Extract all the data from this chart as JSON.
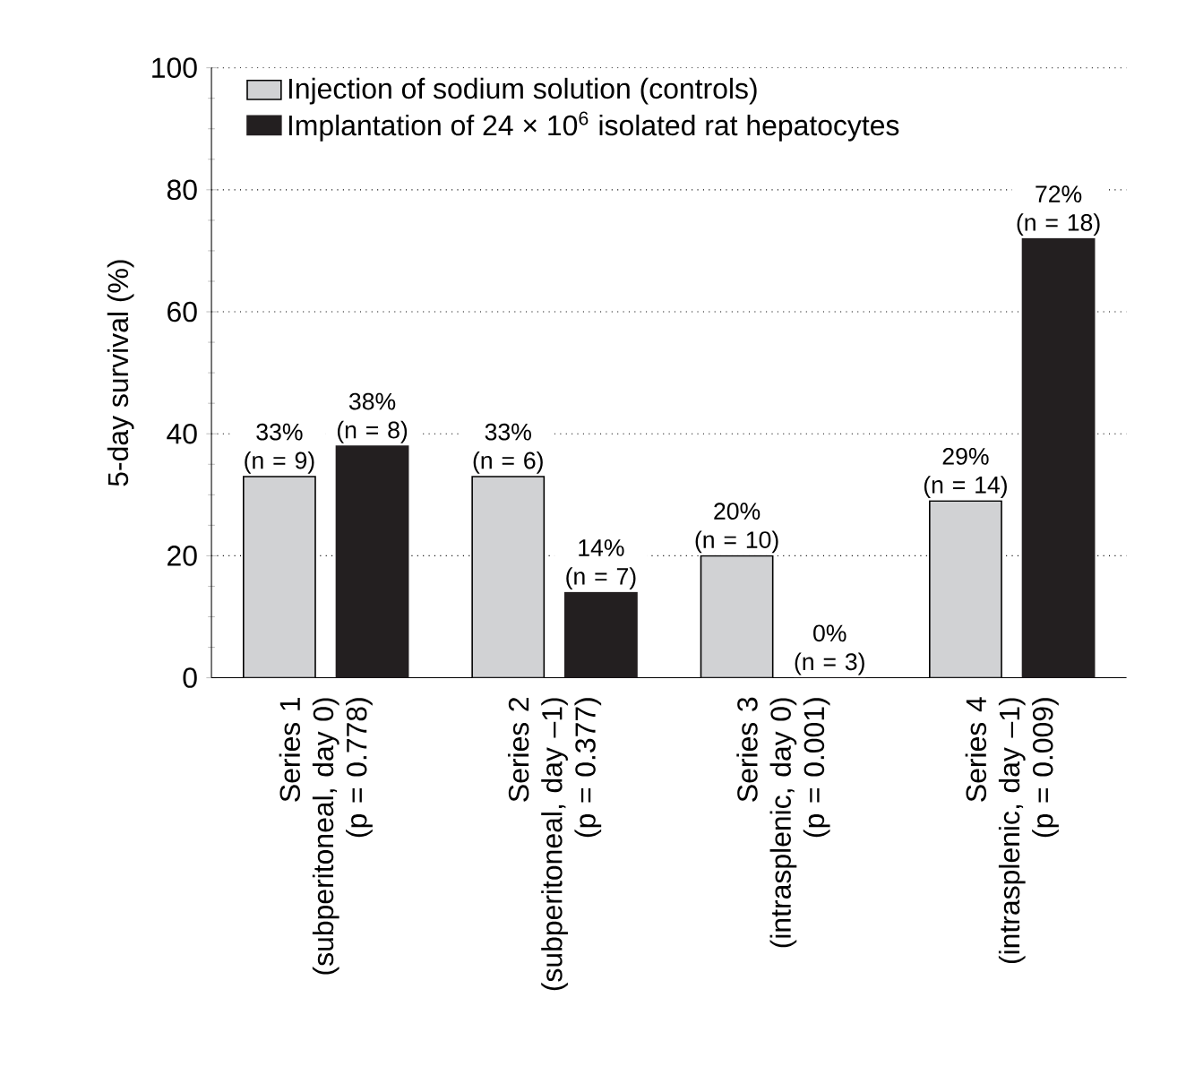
{
  "chart_data": {
    "type": "bar",
    "ylabel": "5-day survival (%)",
    "categories": [
      "Series 1\n(subperitoneal, day 0)\n(p = 0.778)",
      "Series 2\n(subperitoneal, day –1)\n(p = 0.377)",
      "Series 3\n(intrasplenic, day 0)\n(p = 0.001)",
      "Series 4\n(intrasplenic, day –1)\n(p = 0.009)"
    ],
    "series": [
      {
        "name": "Injection of sodium solution (controls)",
        "color": "#d1d2d4",
        "values": [
          33,
          33,
          20,
          29
        ],
        "value_labels": [
          "33%\n(n = 9)",
          "33%\n(n = 6)",
          "20%\n(n = 10)",
          "29%\n(n = 14)"
        ]
      },
      {
        "name": "Implantation of 24 × 10$^{6}$ isolated rat hepatocytes",
        "color": "#231f20",
        "values": [
          38,
          14,
          0,
          72
        ],
        "value_labels": [
          "38%\n(n = 8)",
          "14%\n(n = 7)",
          "0%\n(n = 3)",
          "72%\n(n = 18)"
        ]
      }
    ],
    "ylim": [
      0,
      100
    ],
    "yticks": [
      0,
      20,
      40,
      60,
      80,
      100
    ],
    "grid": "y",
    "legend": "top left"
  }
}
